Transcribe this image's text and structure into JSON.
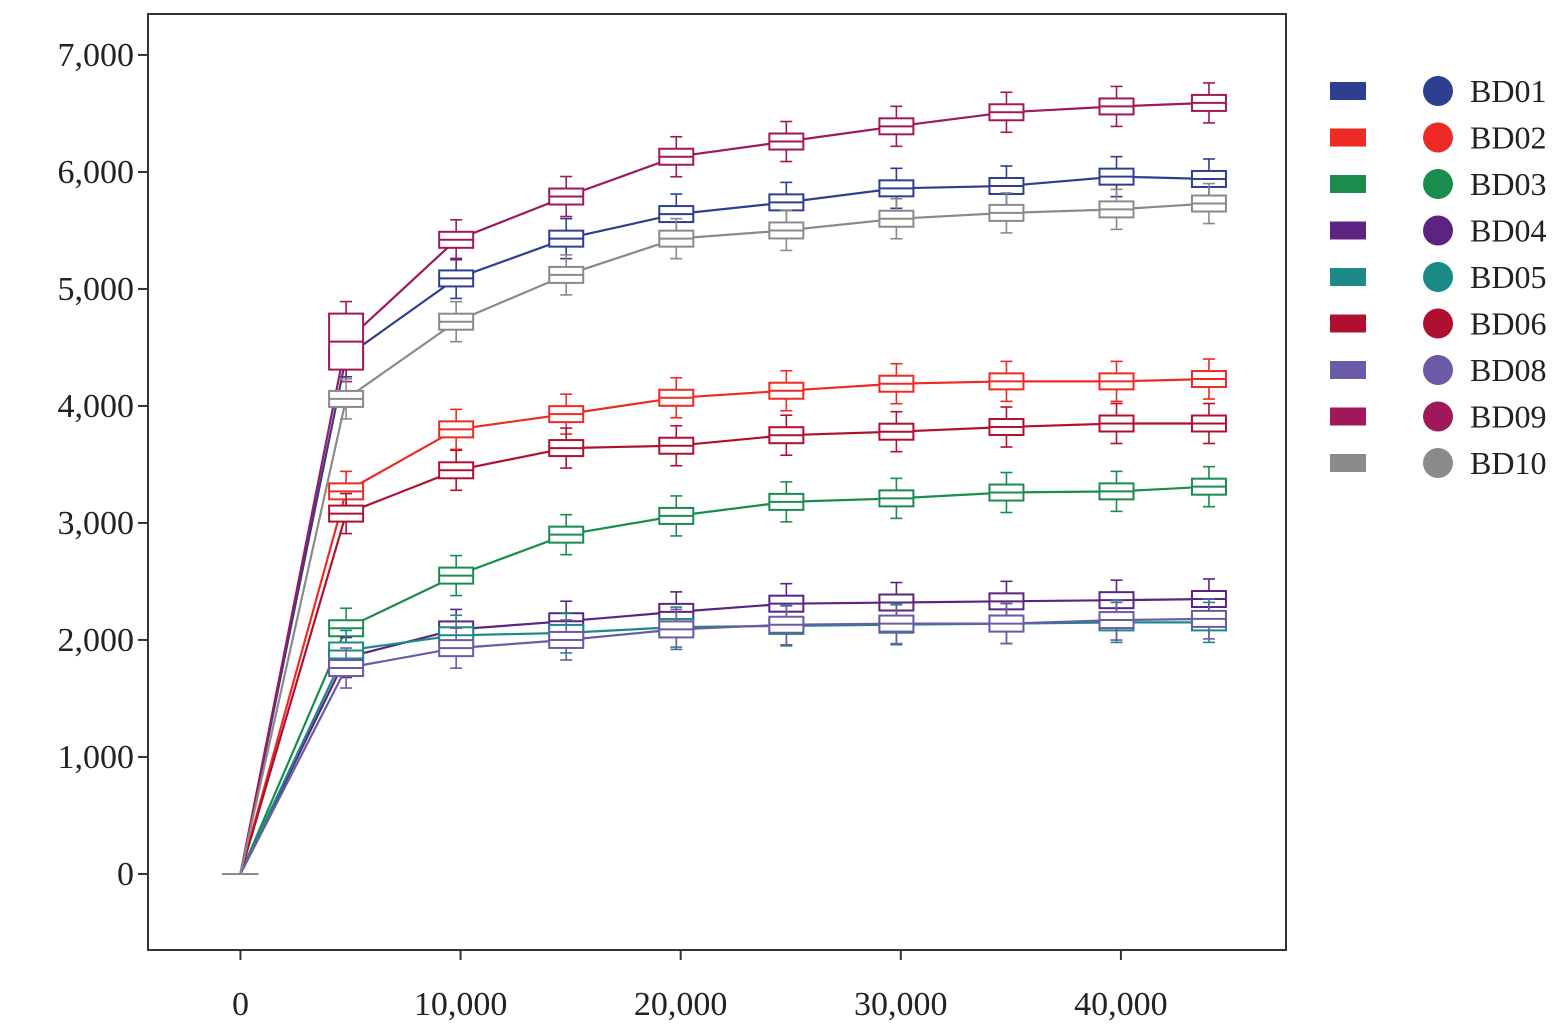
{
  "chart_data": {
    "type": "line",
    "title": "",
    "xlabel": "",
    "ylabel": "",
    "xlim": [
      -4200,
      47500
    ],
    "ylim": [
      -650,
      7350
    ],
    "x_ticks": [
      0,
      10000,
      20000,
      30000,
      40000
    ],
    "x_tick_labels": [
      "0",
      "10,000",
      "20,000",
      "30,000",
      "40,000"
    ],
    "y_ticks": [
      0,
      1000,
      2000,
      3000,
      4000,
      5000,
      6000,
      7000
    ],
    "y_tick_labels": [
      "0",
      "1,000",
      "2,000",
      "3,000",
      "4,000",
      "5,000",
      "6,000",
      "7,000"
    ],
    "grid": false,
    "legend_position": "right",
    "x": [
      0,
      4800,
      9800,
      14800,
      19800,
      24800,
      29800,
      34800,
      39800,
      44000
    ],
    "series": [
      {
        "name": "BD01",
        "color": "#2e3f8f",
        "values": [
          0,
          4420,
          5090,
          5430,
          5640,
          5740,
          5860,
          5880,
          5960,
          5940
        ]
      },
      {
        "name": "BD02",
        "color": "#ee2a24",
        "values": [
          0,
          3270,
          3800,
          3930,
          4070,
          4130,
          4190,
          4210,
          4210,
          4230
        ]
      },
      {
        "name": "BD03",
        "color": "#1a8c4e",
        "values": [
          0,
          2100,
          2550,
          2900,
          3060,
          3180,
          3210,
          3260,
          3270,
          3310
        ]
      },
      {
        "name": "BD04",
        "color": "#5c2480",
        "values": [
          0,
          1850,
          2090,
          2160,
          2240,
          2310,
          2320,
          2330,
          2340,
          2350
        ]
      },
      {
        "name": "BD05",
        "color": "#1b8a86",
        "values": [
          0,
          1910,
          2040,
          2060,
          2110,
          2120,
          2130,
          2140,
          2150,
          2150
        ]
      },
      {
        "name": "BD06",
        "color": "#b01030",
        "values": [
          0,
          3080,
          3450,
          3640,
          3660,
          3750,
          3780,
          3820,
          3850,
          3850
        ]
      },
      {
        "name": "BD08",
        "color": "#6a5aa8",
        "values": [
          0,
          1760,
          1930,
          2000,
          2090,
          2130,
          2140,
          2140,
          2170,
          2180
        ]
      },
      {
        "name": "BD09",
        "color": "#a0175a",
        "values": [
          0,
          4550,
          5420,
          5790,
          6130,
          6260,
          6390,
          6510,
          6560,
          6590
        ]
      },
      {
        "name": "BD10",
        "color": "#8a8a8a",
        "values": [
          0,
          4060,
          4720,
          5120,
          5430,
          5500,
          5600,
          5650,
          5680,
          5730
        ]
      }
    ]
  }
}
